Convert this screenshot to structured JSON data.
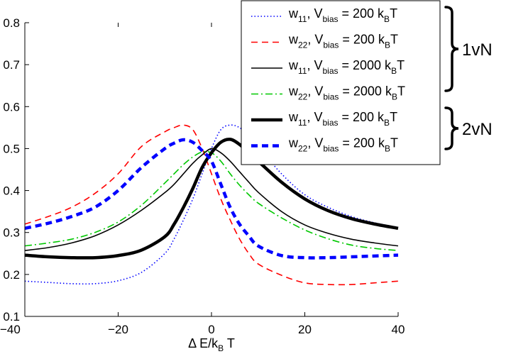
{
  "chart_data": {
    "type": "line",
    "title": "",
    "xlabel": "Δ E/k_B T",
    "ylabel": "",
    "xlim": [
      -40,
      40
    ],
    "ylim": [
      0.1,
      0.8
    ],
    "xticks": [
      -40,
      -20,
      0,
      20,
      40
    ],
    "yticks": [
      0.1,
      0.2,
      0.3,
      0.4,
      0.5,
      0.6,
      0.7,
      0.8
    ],
    "xtick_labels": [
      "−40",
      "−20",
      "0",
      "20",
      "40"
    ],
    "ytick_labels": [
      "0.1",
      "0.2",
      "0.3",
      "0.4",
      "0.5",
      "0.6",
      "0.7",
      "0.8"
    ],
    "grid": false,
    "legend_position": "top-right",
    "x": [
      -40,
      -35,
      -30,
      -25,
      -20,
      -15,
      -10,
      -8,
      -6,
      -4,
      -2,
      0,
      2,
      4,
      6,
      8,
      10,
      15,
      20,
      25,
      30,
      35,
      40
    ],
    "series": [
      {
        "name": "w11, Vbias = 200 kBT",
        "color": "#0000ff",
        "dash": "dotted",
        "width": "thin",
        "legend": {
          "w": "w",
          "w_sub": "11",
          "mid": ", V",
          "v_sub": "bias",
          "eq": " = 200 k",
          "k_sub": "B",
          "end": "T"
        },
        "values": [
          0.184,
          0.181,
          0.178,
          0.178,
          0.185,
          0.205,
          0.25,
          0.285,
          0.33,
          0.38,
          0.44,
          0.5,
          0.545,
          0.556,
          0.55,
          0.53,
          0.505,
          0.44,
          0.39,
          0.36,
          0.338,
          0.323,
          0.312
        ]
      },
      {
        "name": "w22, Vbias = 200 kBT",
        "color": "#ff0000",
        "dash": "dashed",
        "width": "thin",
        "legend": {
          "w": "w",
          "w_sub": "22",
          "mid": ", V",
          "v_sub": "bias",
          "eq": " = 200 k",
          "k_sub": "B",
          "end": "T"
        },
        "values": [
          0.32,
          0.338,
          0.36,
          0.393,
          0.44,
          0.505,
          0.54,
          0.55,
          0.556,
          0.545,
          0.5,
          0.44,
          0.38,
          0.33,
          0.285,
          0.25,
          0.225,
          0.198,
          0.18,
          0.176,
          0.176,
          0.18,
          0.184
        ]
      },
      {
        "name": "w11, Vbias = 2000 kBT",
        "color": "#000000",
        "dash": "solid",
        "width": "thin",
        "legend": {
          "w": "w",
          "w_sub": "11",
          "mid": ", V",
          "v_sub": "bias",
          "eq": " = 2000 k",
          "k_sub": "B",
          "end": "T"
        },
        "values": [
          0.257,
          0.264,
          0.275,
          0.292,
          0.318,
          0.353,
          0.395,
          0.415,
          0.44,
          0.465,
          0.485,
          0.5,
          0.49,
          0.47,
          0.445,
          0.42,
          0.396,
          0.35,
          0.318,
          0.298,
          0.284,
          0.275,
          0.268
        ]
      },
      {
        "name": "w22, Vbias = 2000 kBT",
        "color": "#00c800",
        "dash": "dashdot",
        "width": "thin",
        "legend": {
          "w": "w",
          "w_sub": "22",
          "mid": ", V",
          "v_sub": "bias",
          "eq": " = 2000 k",
          "k_sub": "B",
          "end": "T"
        },
        "values": [
          0.268,
          0.275,
          0.284,
          0.3,
          0.325,
          0.365,
          0.418,
          0.44,
          0.462,
          0.48,
          0.492,
          0.49,
          0.47,
          0.44,
          0.413,
          0.39,
          0.37,
          0.335,
          0.306,
          0.285,
          0.27,
          0.262,
          0.257
        ]
      },
      {
        "name": "w11, Vbias = 200 kBT (2vN)",
        "color": "#000000",
        "dash": "solid",
        "width": "thick",
        "legend": {
          "w": "w",
          "w_sub": "11",
          "mid": ", V",
          "v_sub": "bias",
          "eq": " = 200 k",
          "k_sub": "B",
          "end": "T"
        },
        "values": [
          0.246,
          0.242,
          0.24,
          0.24,
          0.245,
          0.258,
          0.29,
          0.32,
          0.36,
          0.405,
          0.455,
          0.49,
          0.515,
          0.522,
          0.51,
          0.49,
          0.47,
          0.42,
          0.38,
          0.352,
          0.333,
          0.32,
          0.31
        ]
      },
      {
        "name": "w22, Vbias = 200 kBT (2vN)",
        "color": "#0000ff",
        "dash": "dashed",
        "width": "thick",
        "legend": {
          "w": "w",
          "w_sub": "22",
          "mid": ", V",
          "v_sub": "bias",
          "eq": " = 200 k",
          "k_sub": "B",
          "end": "T"
        },
        "values": [
          0.31,
          0.322,
          0.338,
          0.36,
          0.4,
          0.455,
          0.5,
          0.513,
          0.521,
          0.515,
          0.495,
          0.47,
          0.415,
          0.36,
          0.32,
          0.292,
          0.268,
          0.245,
          0.24,
          0.24,
          0.242,
          0.244,
          0.246
        ]
      }
    ],
    "annotations": [
      {
        "label": "1vN",
        "groups": [
          0,
          1,
          2,
          3
        ]
      },
      {
        "label": "2vN",
        "groups": [
          4,
          5
        ]
      }
    ]
  }
}
